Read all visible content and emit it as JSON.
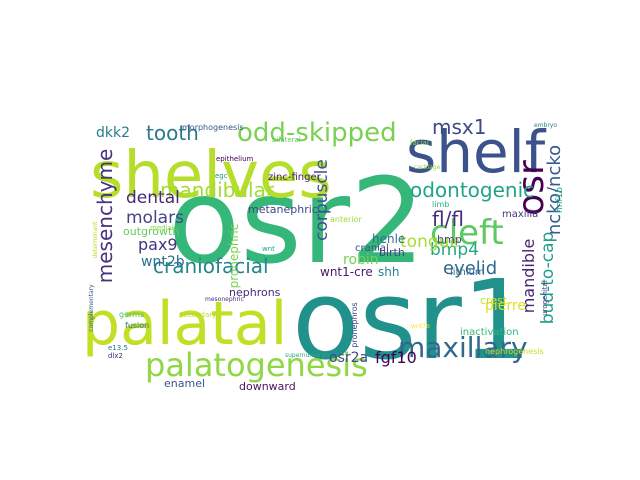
{
  "words": [
    {
      "text": "osr2",
      "color": "#35b779"
    },
    {
      "text": "osr1",
      "color": "#21918c"
    },
    {
      "text": "shelves",
      "color": "#b5de2b"
    },
    {
      "text": "palatal",
      "color": "#c2df23"
    },
    {
      "text": "shelf",
      "color": "#3b528b"
    },
    {
      "text": "palatogenesis",
      "color": "#90d743"
    },
    {
      "text": "odd-skipped",
      "color": "#7ad151"
    },
    {
      "text": "cleft",
      "color": "#5ec962"
    },
    {
      "text": "maxillary",
      "color": "#31688e"
    },
    {
      "text": "osr",
      "color": "#440154"
    },
    {
      "text": "mandibular",
      "color": "#a5db36"
    },
    {
      "text": "odontogenic",
      "color": "#20a486"
    },
    {
      "text": "craniofacial",
      "color": "#25848e"
    },
    {
      "text": "mesenchyme",
      "color": "#46327e"
    },
    {
      "text": "fl/fl",
      "color": "#472d7b"
    },
    {
      "text": "msx1",
      "color": "#3e4989"
    },
    {
      "text": "tooth",
      "color": "#2a788e"
    },
    {
      "text": "ncko/ncko",
      "color": "#365c8d"
    },
    {
      "text": "bmp4",
      "color": "#22a884"
    },
    {
      "text": "molars",
      "color": "#414487"
    },
    {
      "text": "dental",
      "color": "#482878"
    },
    {
      "text": "tongue",
      "color": "#aadc32"
    },
    {
      "text": "bud-to-cap",
      "color": "#1f9e89"
    },
    {
      "text": "corpuscle",
      "color": "#3b528b"
    },
    {
      "text": "eyelid",
      "color": "#31688e"
    },
    {
      "text": "mandible",
      "color": "#482475"
    },
    {
      "text": "pax9",
      "color": "#46337f"
    },
    {
      "text": "fgf10",
      "color": "#440154"
    },
    {
      "text": "wnt2b",
      "color": "#2c728e"
    },
    {
      "text": "dkk2",
      "color": "#287c8e"
    },
    {
      "text": "osr2a",
      "color": "#3e4a89"
    },
    {
      "text": "pierre",
      "color": "#dde318"
    },
    {
      "text": "robin",
      "color": "#75d054"
    },
    {
      "text": "wnt1-cre",
      "color": "#481a6c"
    },
    {
      "text": "shh",
      "color": "#26828e"
    },
    {
      "text": "henle",
      "color": "#2d708e"
    },
    {
      "text": "metanephric",
      "color": "#3f4788"
    },
    {
      "text": "nephrons",
      "color": "#472c7a"
    },
    {
      "text": "birth",
      "color": "#433e85"
    },
    {
      "text": "crest",
      "color": "#d0e11c"
    },
    {
      "text": "lithium",
      "color": "#2e6e8e"
    },
    {
      "text": "maxilla",
      "color": "#453781"
    },
    {
      "text": "bmp",
      "color": "#404688"
    },
    {
      "text": "enamel",
      "color": "#39568c"
    },
    {
      "text": "downward",
      "color": "#481467"
    },
    {
      "text": "outgrowth",
      "color": "#67cc5c"
    },
    {
      "text": "cranial",
      "color": "#3d4d8a"
    },
    {
      "text": "pronephric",
      "color": "#7ad151"
    },
    {
      "text": "inactivation",
      "color": "#35b779"
    },
    {
      "text": "zinc-finger",
      "color": "#482071"
    },
    {
      "text": "hnf1b",
      "color": "#1fa088"
    },
    {
      "text": "germs",
      "color": "#48c16e"
    },
    {
      "text": "fusion",
      "color": "#2b748e"
    },
    {
      "text": "anterior",
      "color": "#a0da39"
    },
    {
      "text": "epithelium",
      "color": "#440154"
    },
    {
      "text": "morphogenesis",
      "color": "#3b528b"
    },
    {
      "text": "medial",
      "color": "#8bd646"
    },
    {
      "text": "bilateral",
      "color": "#5ec962"
    },
    {
      "text": "secondary",
      "color": "#b5de2b"
    },
    {
      "text": "nephrogenesis",
      "color": "#c8e020"
    },
    {
      "text": "limb",
      "color": "#29af7f"
    },
    {
      "text": "egc",
      "color": "#1e9b8a"
    },
    {
      "text": "pronephros",
      "color": "#3e4989"
    },
    {
      "text": "dlx2",
      "color": "#482878"
    },
    {
      "text": "e13.5",
      "color": "#2c728e"
    },
    {
      "text": "wnt",
      "color": "#20a486"
    },
    {
      "text": "urogenital",
      "color": "#414487"
    },
    {
      "text": "facial",
      "color": "#90d743"
    },
    {
      "text": "cartilage",
      "color": "#95d840"
    },
    {
      "text": "supernumerary",
      "color": "#25ab82"
    },
    {
      "text": "complementary",
      "color": "#34618d"
    },
    {
      "text": "determinant",
      "color": "#b8de29"
    },
    {
      "text": "embryo",
      "color": "#277f8e"
    },
    {
      "text": "mesonephric",
      "color": "#46307e"
    },
    {
      "text": "wnt7b",
      "color": "#fde725"
    }
  ]
}
